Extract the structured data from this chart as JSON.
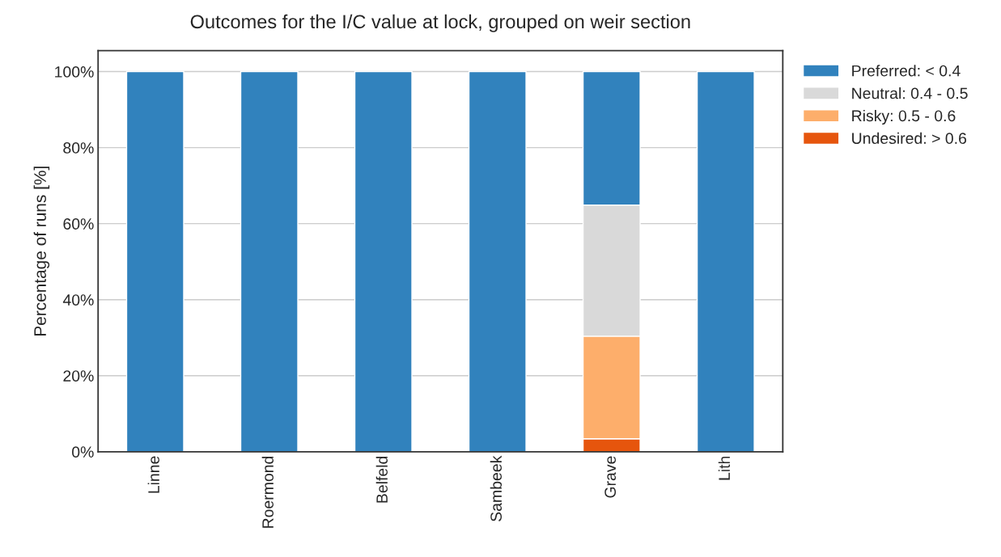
{
  "chart_data": {
    "type": "bar",
    "title": "Outcomes for the I/C value at lock, grouped on weir section",
    "ylabel": "Percentage of runs [%]",
    "categories": [
      "Linne",
      "Roermond",
      "Belfeld",
      "Sambeek",
      "Grave",
      "Lith"
    ],
    "stacked": true,
    "series": [
      {
        "name": "Undesired: > 0.6",
        "color": "#e6550d",
        "values": [
          0,
          0,
          0,
          0,
          3.4,
          0
        ]
      },
      {
        "name": "Risky: 0.5 - 0.6",
        "color": "#fdae6b",
        "values": [
          0,
          0,
          0,
          0,
          27,
          0
        ]
      },
      {
        "name": "Neutral: 0.4 - 0.5",
        "color": "#d9d9d9",
        "values": [
          0,
          0,
          0,
          0,
          34.5,
          0
        ]
      },
      {
        "name": "Preferred: < 0.4",
        "color": "#3182bd",
        "values": [
          100,
          100,
          100,
          100,
          35.1,
          100
        ]
      }
    ],
    "ylim": [
      0,
      105.5
    ],
    "yticks": [
      {
        "value": 0,
        "label": "0%"
      },
      {
        "value": 20,
        "label": "20%"
      },
      {
        "value": 40,
        "label": "40%"
      },
      {
        "value": 60,
        "label": "60%"
      },
      {
        "value": 80,
        "label": "80%"
      },
      {
        "value": 100,
        "label": "100%"
      }
    ],
    "grid": "y",
    "legend": "top right"
  }
}
